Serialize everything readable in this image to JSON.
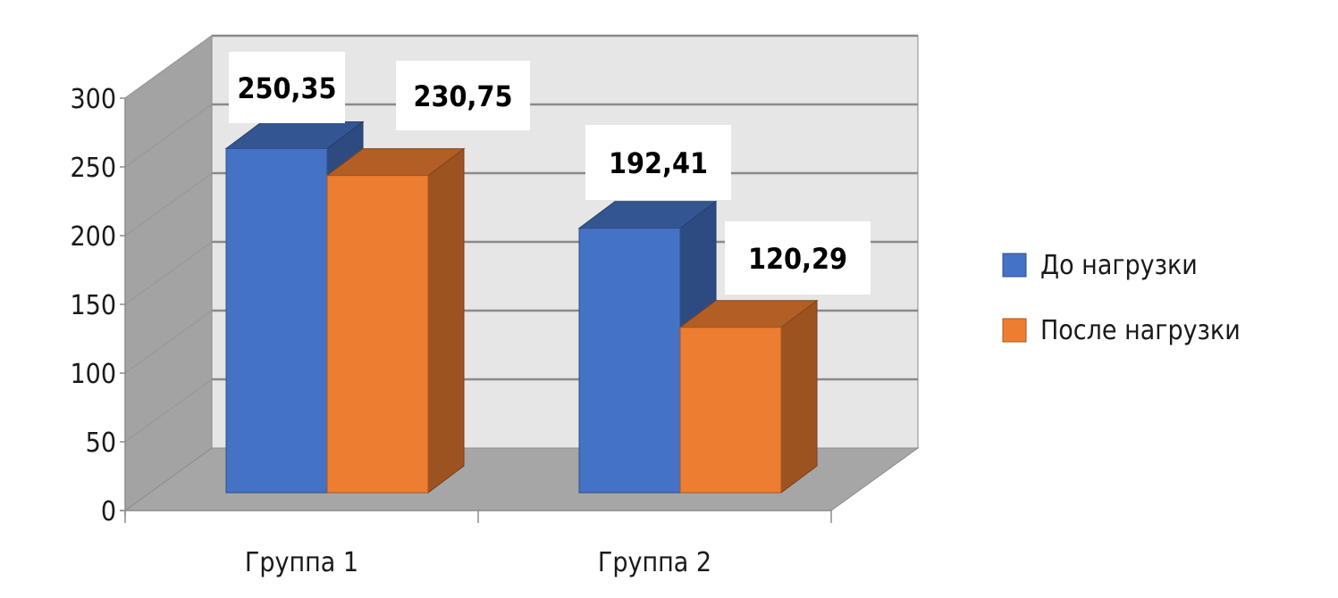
{
  "chart_data": {
    "type": "bar",
    "categories": [
      "Группа 1",
      "Группа 2"
    ],
    "series": [
      {
        "name": "До нагрузки",
        "values": [
          250.35,
          192.41
        ],
        "labels": [
          "250,35",
          "192,41"
        ],
        "color": "#4472C4"
      },
      {
        "name": "После нагрузки",
        "values": [
          230.75,
          120.29
        ],
        "labels": [
          "230,75",
          "120,29"
        ],
        "color": "#ED7D31"
      }
    ],
    "yticks": [
      "0",
      "50",
      "100",
      "150",
      "200",
      "250",
      "300"
    ],
    "ylim": [
      0,
      300
    ],
    "grid": true,
    "legend": "right",
    "title": "",
    "xlabel": "",
    "ylabel": ""
  }
}
